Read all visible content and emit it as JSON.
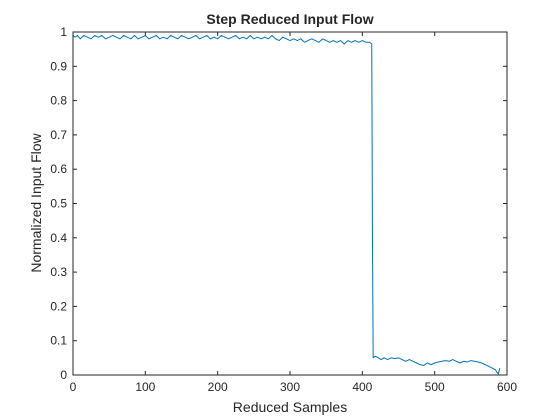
{
  "chart_data": {
    "type": "line",
    "title": "Step Reduced Input Flow",
    "xlabel": "Reduced Samples",
    "ylabel": "Normalized Input Flow",
    "xlim": [
      0,
      600
    ],
    "ylim": [
      0,
      1
    ],
    "xticks": [
      0,
      100,
      200,
      300,
      400,
      500,
      600
    ],
    "yticks": [
      0,
      0.1,
      0.2,
      0.3,
      0.4,
      0.5,
      0.6,
      0.7,
      0.8,
      0.9,
      1
    ],
    "grid": false,
    "series": [
      {
        "color": "#0072bd",
        "x": [
          0,
          3,
          6,
          10,
          15,
          20,
          25,
          30,
          35,
          40,
          45,
          50,
          55,
          60,
          65,
          70,
          75,
          80,
          85,
          90,
          95,
          100,
          105,
          110,
          115,
          120,
          125,
          130,
          135,
          140,
          145,
          150,
          155,
          160,
          165,
          170,
          175,
          180,
          185,
          190,
          195,
          200,
          205,
          210,
          215,
          220,
          225,
          230,
          235,
          240,
          245,
          250,
          255,
          260,
          265,
          270,
          275,
          280,
          285,
          290,
          295,
          300,
          305,
          310,
          315,
          320,
          325,
          330,
          335,
          340,
          345,
          350,
          355,
          360,
          365,
          370,
          375,
          380,
          385,
          390,
          395,
          400,
          405,
          410,
          413,
          414,
          415,
          418,
          422,
          426,
          430,
          435,
          440,
          445,
          450,
          455,
          460,
          465,
          470,
          475,
          480,
          485,
          490,
          495,
          500,
          505,
          510,
          515,
          520,
          525,
          530,
          535,
          540,
          545,
          550,
          555,
          560,
          565,
          570,
          575,
          580,
          584,
          586,
          588,
          590
        ],
        "y": [
          0.99,
          0.985,
          0.99,
          0.98,
          0.99,
          0.985,
          0.98,
          0.99,
          0.985,
          0.99,
          0.98,
          0.985,
          0.99,
          0.985,
          0.98,
          0.99,
          0.985,
          0.98,
          0.99,
          0.98,
          0.985,
          0.99,
          0.98,
          0.985,
          0.99,
          0.98,
          0.985,
          0.98,
          0.99,
          0.985,
          0.98,
          0.99,
          0.985,
          0.98,
          0.985,
          0.99,
          0.98,
          0.985,
          0.99,
          0.98,
          0.985,
          0.98,
          0.99,
          0.985,
          0.98,
          0.985,
          0.99,
          0.98,
          0.985,
          0.98,
          0.99,
          0.98,
          0.985,
          0.98,
          0.985,
          0.98,
          0.99,
          0.98,
          0.975,
          0.985,
          0.98,
          0.975,
          0.98,
          0.975,
          0.98,
          0.97,
          0.975,
          0.98,
          0.975,
          0.97,
          0.98,
          0.975,
          0.97,
          0.975,
          0.97,
          0.975,
          0.965,
          0.975,
          0.97,
          0.975,
          0.97,
          0.975,
          0.97,
          0.97,
          0.965,
          0.4,
          0.05,
          0.055,
          0.05,
          0.045,
          0.05,
          0.045,
          0.05,
          0.048,
          0.05,
          0.045,
          0.04,
          0.045,
          0.04,
          0.035,
          0.03,
          0.028,
          0.035,
          0.03,
          0.035,
          0.038,
          0.04,
          0.042,
          0.04,
          0.045,
          0.04,
          0.035,
          0.04,
          0.038,
          0.042,
          0.04,
          0.038,
          0.035,
          0.03,
          0.025,
          0.02,
          0.015,
          0.008,
          0.003,
          0.02
        ]
      }
    ]
  }
}
